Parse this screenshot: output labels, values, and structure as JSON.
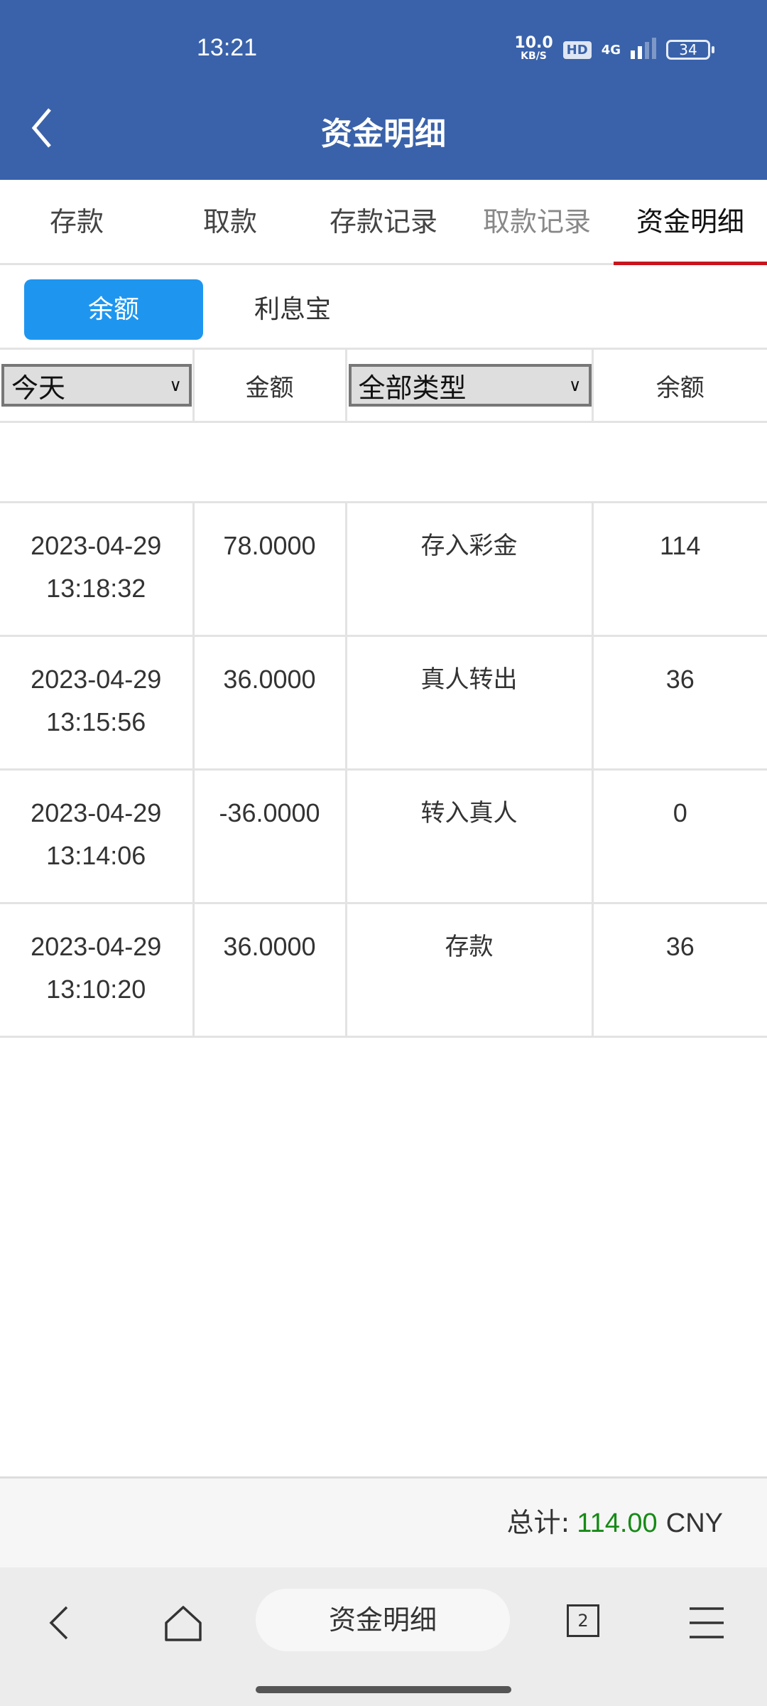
{
  "status": {
    "time": "13:21",
    "speed": "10.0",
    "speed_unit": "KB/S",
    "hd": "HD",
    "network": "4G",
    "battery": "34"
  },
  "header": {
    "title": "资金明细"
  },
  "tabs": [
    {
      "label": "存款"
    },
    {
      "label": "取款"
    },
    {
      "label": "存款记录"
    },
    {
      "label": "取款记录"
    },
    {
      "label": "资金明细"
    }
  ],
  "subtabs": [
    {
      "label": "余额"
    },
    {
      "label": "利息宝"
    }
  ],
  "table": {
    "date_filter": "今天",
    "amount_header": "金额",
    "type_filter": "全部类型",
    "balance_header": "余额",
    "rows": [
      {
        "date": "2023-04-29",
        "time": "13:18:32",
        "amount": "78.0000",
        "type": "存入彩金",
        "balance": "114"
      },
      {
        "date": "2023-04-29",
        "time": "13:15:56",
        "amount": "36.0000",
        "type": "真人转出",
        "balance": "36"
      },
      {
        "date": "2023-04-29",
        "time": "13:14:06",
        "amount": "-36.0000",
        "type": "转入真人",
        "balance": "0"
      },
      {
        "date": "2023-04-29",
        "time": "13:10:20",
        "amount": "36.0000",
        "type": "存款",
        "balance": "36"
      }
    ]
  },
  "footer": {
    "total_label": "总计:",
    "total_value": "114.00",
    "currency": "CNY"
  },
  "browser": {
    "page_title": "资金明细",
    "tab_count": "2"
  },
  "colors": {
    "header": "#3a62aa",
    "accent": "#1e96f0",
    "active_tab": "#c9141e",
    "total": "#168a16"
  }
}
